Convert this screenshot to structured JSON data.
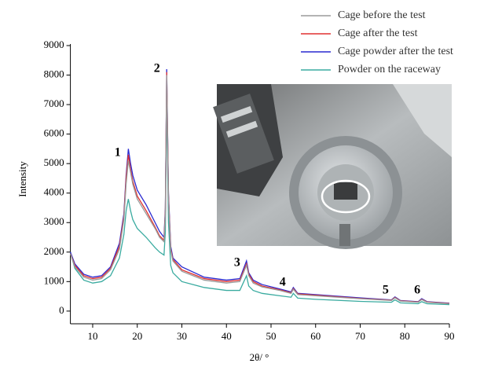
{
  "chart_data": {
    "type": "line",
    "x_label": "2θ/ °",
    "y_label": "Intensity",
    "xlim": [
      5,
      90
    ],
    "ylim": [
      -430,
      9000
    ],
    "xticks": [
      10,
      20,
      30,
      40,
      50,
      60,
      70,
      80,
      90
    ],
    "yticks": [
      0,
      1000,
      2000,
      3000,
      4000,
      5000,
      6000,
      7000,
      8000,
      9000
    ],
    "legend": "upper right",
    "x": [
      5,
      6,
      8,
      10,
      12,
      14,
      16,
      17,
      17.5,
      18,
      18.5,
      19,
      20,
      22,
      24,
      25,
      26,
      26.3,
      26.6,
      27,
      27.5,
      28,
      30,
      35,
      40,
      43,
      44.5,
      45,
      46,
      48,
      52,
      54.5,
      55,
      56,
      60,
      70,
      77,
      77.8,
      79,
      83,
      83.8,
      85,
      90
    ],
    "series": [
      {
        "name": "Cage before the test",
        "color": "#9a9a9a",
        "values": [
          1950,
          1500,
          1150,
          1050,
          1100,
          1400,
          2100,
          3100,
          4300,
          5100,
          4700,
          4300,
          3800,
          3300,
          2800,
          2500,
          2350,
          3300,
          8000,
          3800,
          2050,
          1700,
          1350,
          1050,
          950,
          1000,
          1550,
          1200,
          950,
          820,
          700,
          600,
          740,
          560,
          520,
          420,
          360,
          450,
          340,
          300,
          390,
          300,
          250
        ]
      },
      {
        "name": "Cage after the test",
        "color": "#e03030",
        "values": [
          1950,
          1550,
          1200,
          1100,
          1150,
          1450,
          2200,
          3200,
          4500,
          5300,
          4800,
          4400,
          3900,
          3400,
          2850,
          2550,
          2400,
          3400,
          8100,
          3900,
          2100,
          1750,
          1400,
          1100,
          1000,
          1050,
          1600,
          1250,
          1000,
          850,
          720,
          620,
          760,
          580,
          540,
          430,
          370,
          460,
          350,
          310,
          400,
          310,
          260
        ]
      },
      {
        "name": "Cage powder after the test",
        "color": "#2a2ad0",
        "values": [
          2000,
          1600,
          1250,
          1150,
          1200,
          1500,
          2300,
          3300,
          4600,
          5500,
          5000,
          4600,
          4100,
          3600,
          3000,
          2700,
          2500,
          3500,
          8200,
          4000,
          2200,
          1800,
          1500,
          1150,
          1050,
          1100,
          1700,
          1300,
          1050,
          900,
          750,
          650,
          800,
          600,
          560,
          450,
          380,
          480,
          360,
          320,
          420,
          320,
          270
        ]
      },
      {
        "name": "Powder on the raceway",
        "color": "#3aaba0",
        "values": [
          2000,
          1450,
          1050,
          950,
          1000,
          1200,
          1800,
          2600,
          3400,
          3800,
          3400,
          3100,
          2800,
          2500,
          2150,
          2000,
          1900,
          2700,
          7200,
          3000,
          1550,
          1300,
          1000,
          800,
          700,
          700,
          1200,
          850,
          700,
          600,
          520,
          470,
          600,
          440,
          400,
          330,
          300,
          380,
          280,
          250,
          320,
          250,
          220
        ]
      }
    ],
    "annotations": [
      {
        "text": "1",
        "x": 15.6,
        "y": 5350
      },
      {
        "text": "2",
        "x": 24.4,
        "y": 8200
      },
      {
        "text": "3",
        "x": 42.4,
        "y": 1620
      },
      {
        "text": "4",
        "x": 52.6,
        "y": 960
      },
      {
        "text": "5",
        "x": 75.7,
        "y": 700
      },
      {
        "text": "6",
        "x": 82.8,
        "y": 700
      }
    ]
  }
}
